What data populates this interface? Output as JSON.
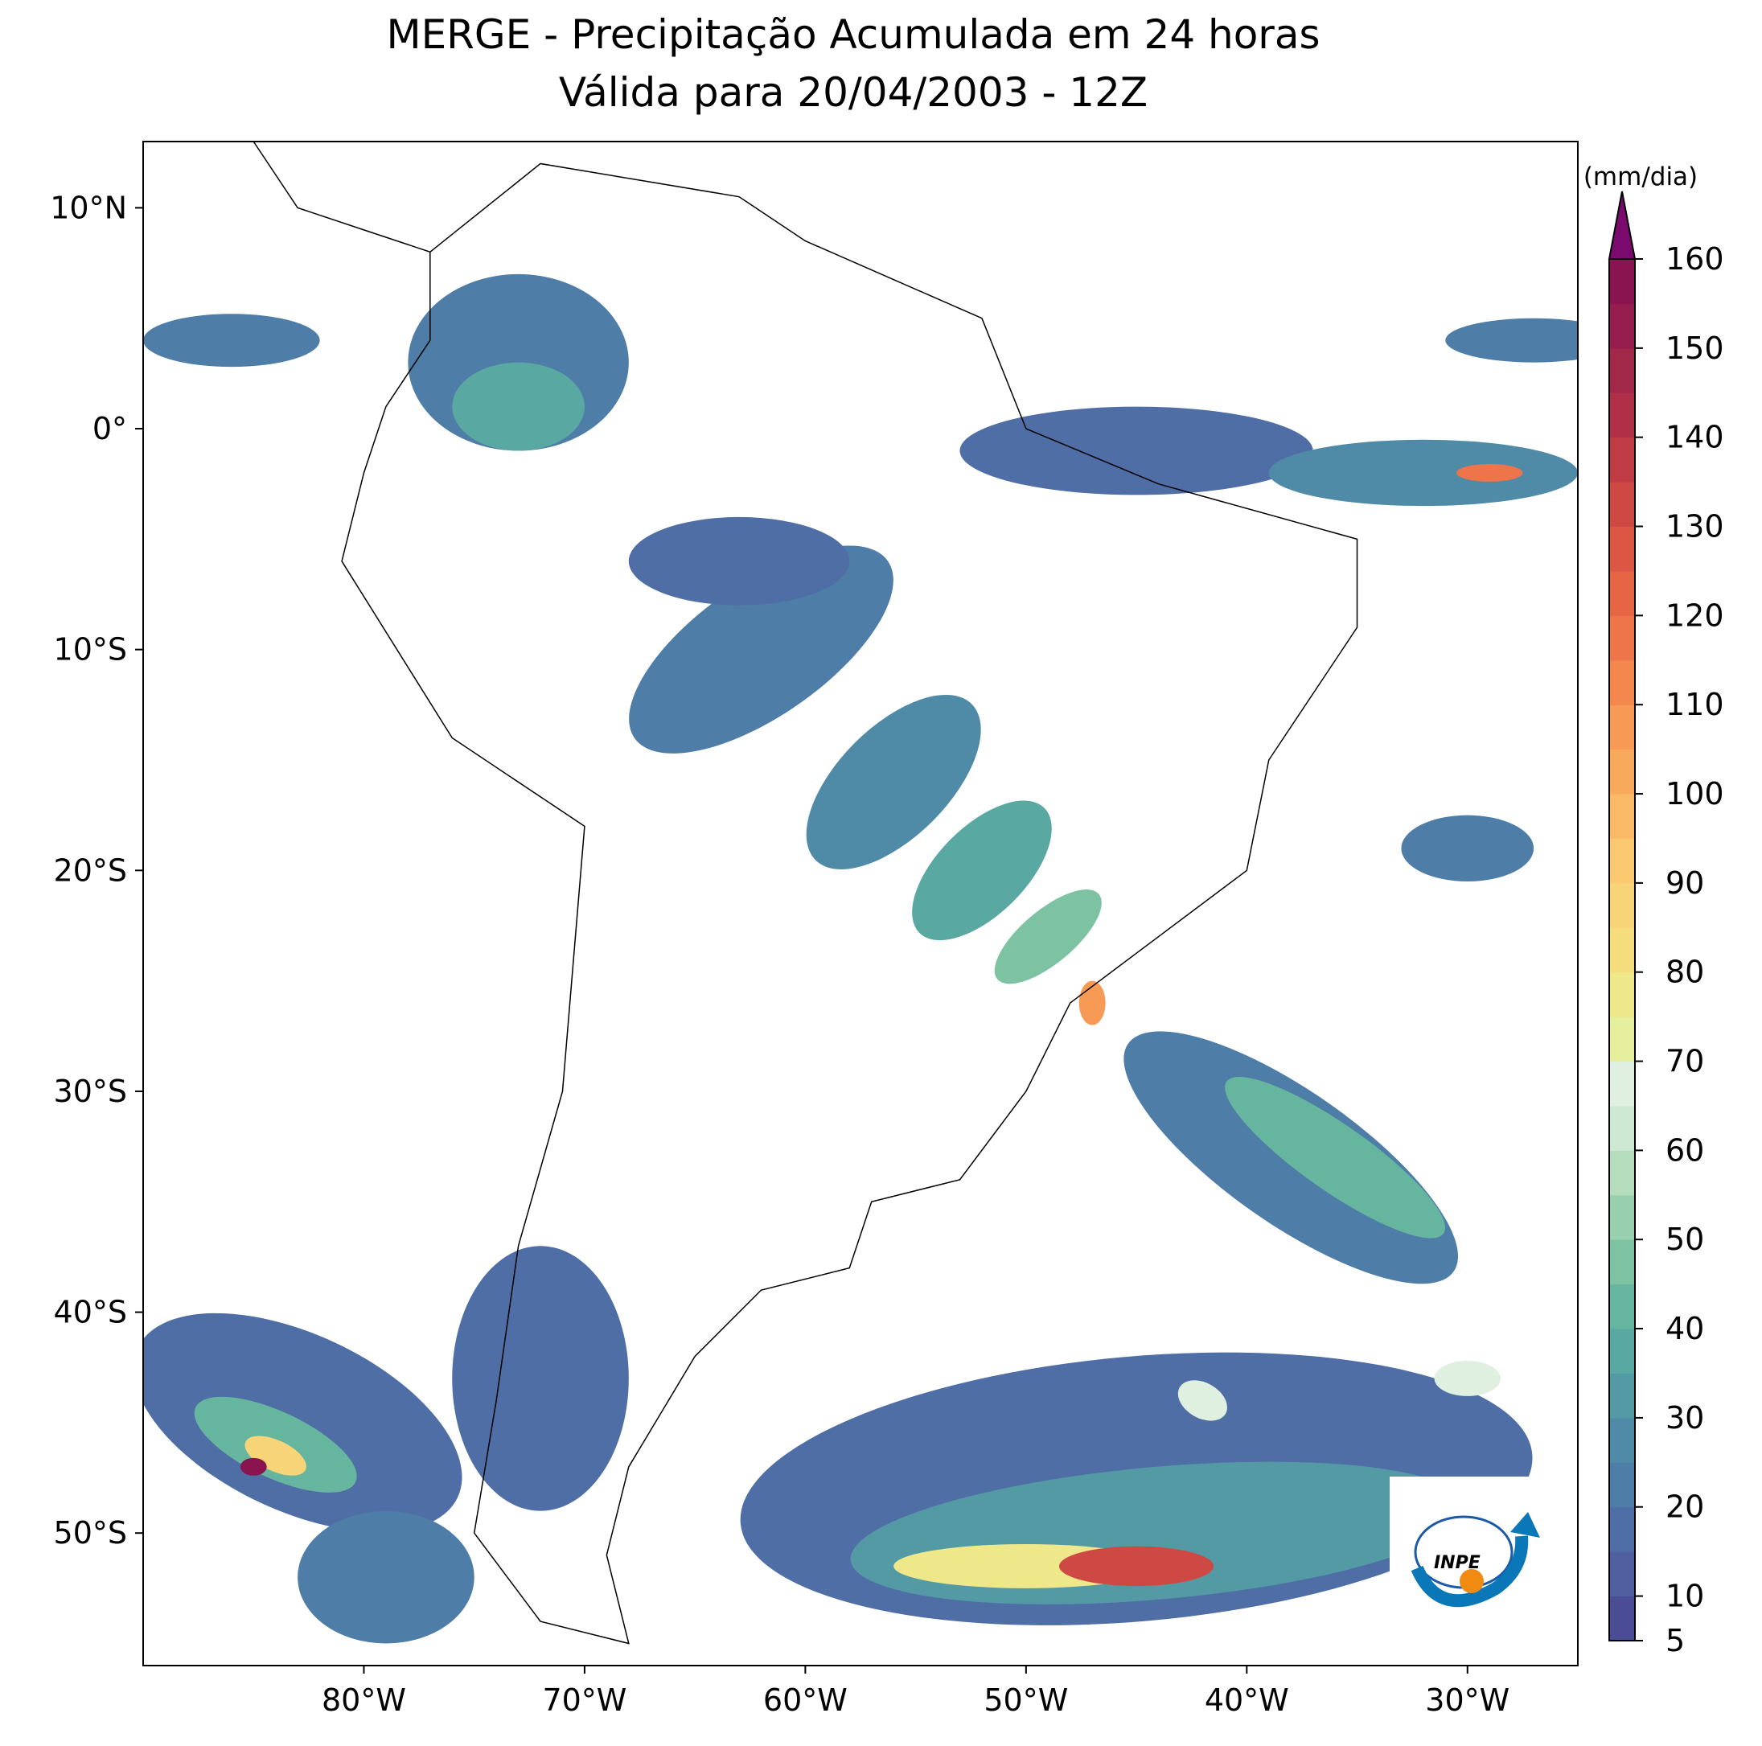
{
  "chart_data": {
    "type": "map",
    "title": "MERGE - Precipitação Acumulada em 24 horas",
    "subtitle": "Válida para 20/04/2003 - 12Z",
    "xlim": [
      -90,
      -25
    ],
    "ylim": [
      -56,
      13
    ],
    "xticks": [
      {
        "value": -80,
        "label": "80°W"
      },
      {
        "value": -70,
        "label": "70°W"
      },
      {
        "value": -60,
        "label": "60°W"
      },
      {
        "value": -50,
        "label": "50°W"
      },
      {
        "value": -40,
        "label": "40°W"
      },
      {
        "value": -30,
        "label": "30°W"
      }
    ],
    "yticks": [
      {
        "value": 10,
        "label": "10°N"
      },
      {
        "value": 0,
        "label": "0°"
      },
      {
        "value": -10,
        "label": "10°S"
      },
      {
        "value": -20,
        "label": "20°S"
      },
      {
        "value": -30,
        "label": "30°S"
      },
      {
        "value": -40,
        "label": "40°S"
      },
      {
        "value": -50,
        "label": "50°S"
      }
    ],
    "colorbar": {
      "label": "(mm/dia)",
      "lim": [
        5,
        160
      ],
      "ticks": [
        5,
        10,
        20,
        30,
        40,
        50,
        60,
        70,
        80,
        90,
        100,
        110,
        120,
        130,
        140,
        150,
        160
      ],
      "colors": [
        "#4a4d95",
        "#4f5fa0",
        "#4f6ea6",
        "#4e7da7",
        "#4f8ba7",
        "#539aa5",
        "#5aa8a2",
        "#66b59f",
        "#7cc2a3",
        "#98cfac",
        "#b5dcbd",
        "#cde8d3",
        "#dfefe0",
        "#e6ef9e",
        "#eee88a",
        "#f5dd7e",
        "#f8d478",
        "#f9c86f",
        "#f9b966",
        "#f8a95c",
        "#f69a55",
        "#f3874e",
        "#ee7549",
        "#e66545",
        "#dc5644",
        "#cf4944",
        "#c03c45",
        "#b03147",
        "#a2284a",
        "#951e4e",
        "#8a1450"
      ],
      "extend_color": "#7b0a6e"
    },
    "logo": "INPE"
  }
}
